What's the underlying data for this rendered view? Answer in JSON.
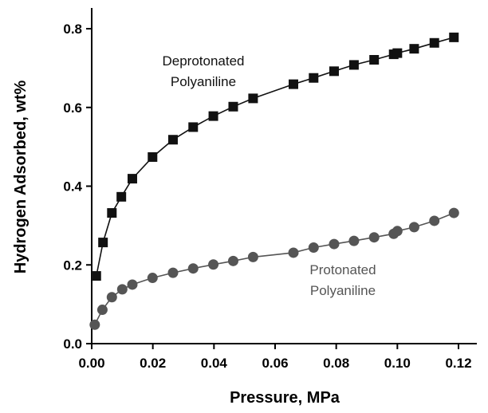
{
  "chart_data": {
    "type": "scatter",
    "xlabel": "Pressure, MPa",
    "ylabel": "Hydrogen Adsorbed, wt%",
    "xlim": [
      0.0,
      0.125
    ],
    "ylim": [
      0.0,
      0.85
    ],
    "xticks": [
      {
        "value": 0.0,
        "label": "0.00"
      },
      {
        "value": 0.02,
        "label": "0.02"
      },
      {
        "value": 0.04,
        "label": "0.04"
      },
      {
        "value": 0.06,
        "label": "0.06"
      },
      {
        "value": 0.08,
        "label": "0.08"
      },
      {
        "value": 0.1,
        "label": "0.10"
      },
      {
        "value": 0.12,
        "label": "0.12"
      }
    ],
    "yticks": [
      {
        "value": 0.0,
        "label": "0.0"
      },
      {
        "value": 0.2,
        "label": "0.2"
      },
      {
        "value": 0.4,
        "label": "0.4"
      },
      {
        "value": 0.6,
        "label": "0.6"
      },
      {
        "value": 0.8,
        "label": "0.8"
      }
    ],
    "grid": false,
    "series": [
      {
        "name": "Deprotonated Polyaniline",
        "label_lines": [
          "Deprotonated",
          "Polyaniline"
        ],
        "marker": "square",
        "color": "#111111",
        "points": [
          {
            "x": 0.0015,
            "y": 0.172
          },
          {
            "x": 0.0037,
            "y": 0.257
          },
          {
            "x": 0.0066,
            "y": 0.332
          },
          {
            "x": 0.0097,
            "y": 0.373
          },
          {
            "x": 0.0133,
            "y": 0.419
          },
          {
            "x": 0.0199,
            "y": 0.474
          },
          {
            "x": 0.0266,
            "y": 0.518
          },
          {
            "x": 0.0332,
            "y": 0.55
          },
          {
            "x": 0.0398,
            "y": 0.578
          },
          {
            "x": 0.0463,
            "y": 0.602
          },
          {
            "x": 0.0528,
            "y": 0.623
          },
          {
            "x": 0.066,
            "y": 0.659
          },
          {
            "x": 0.0726,
            "y": 0.675
          },
          {
            "x": 0.0793,
            "y": 0.692
          },
          {
            "x": 0.0858,
            "y": 0.708
          },
          {
            "x": 0.0924,
            "y": 0.721
          },
          {
            "x": 0.0988,
            "y": 0.735
          },
          {
            "x": 0.1,
            "y": 0.738
          },
          {
            "x": 0.1055,
            "y": 0.749
          },
          {
            "x": 0.1121,
            "y": 0.764
          },
          {
            "x": 0.1185,
            "y": 0.778
          }
        ]
      },
      {
        "name": "Protonated Polyaniline",
        "label_lines": [
          "Protonated",
          "Polyaniline"
        ],
        "marker": "circle",
        "color": "#555555",
        "points": [
          {
            "x": 0.001,
            "y": 0.048
          },
          {
            "x": 0.0035,
            "y": 0.086
          },
          {
            "x": 0.0066,
            "y": 0.118
          },
          {
            "x": 0.01,
            "y": 0.138
          },
          {
            "x": 0.0133,
            "y": 0.15
          },
          {
            "x": 0.0199,
            "y": 0.167
          },
          {
            "x": 0.0266,
            "y": 0.18
          },
          {
            "x": 0.0332,
            "y": 0.191
          },
          {
            "x": 0.0398,
            "y": 0.201
          },
          {
            "x": 0.0463,
            "y": 0.21
          },
          {
            "x": 0.0528,
            "y": 0.22
          },
          {
            "x": 0.066,
            "y": 0.231
          },
          {
            "x": 0.0726,
            "y": 0.244
          },
          {
            "x": 0.0793,
            "y": 0.253
          },
          {
            "x": 0.0858,
            "y": 0.261
          },
          {
            "x": 0.0924,
            "y": 0.27
          },
          {
            "x": 0.0988,
            "y": 0.279
          },
          {
            "x": 0.1,
            "y": 0.286
          },
          {
            "x": 0.1055,
            "y": 0.296
          },
          {
            "x": 0.1121,
            "y": 0.312
          },
          {
            "x": 0.1185,
            "y": 0.332
          }
        ]
      }
    ]
  }
}
